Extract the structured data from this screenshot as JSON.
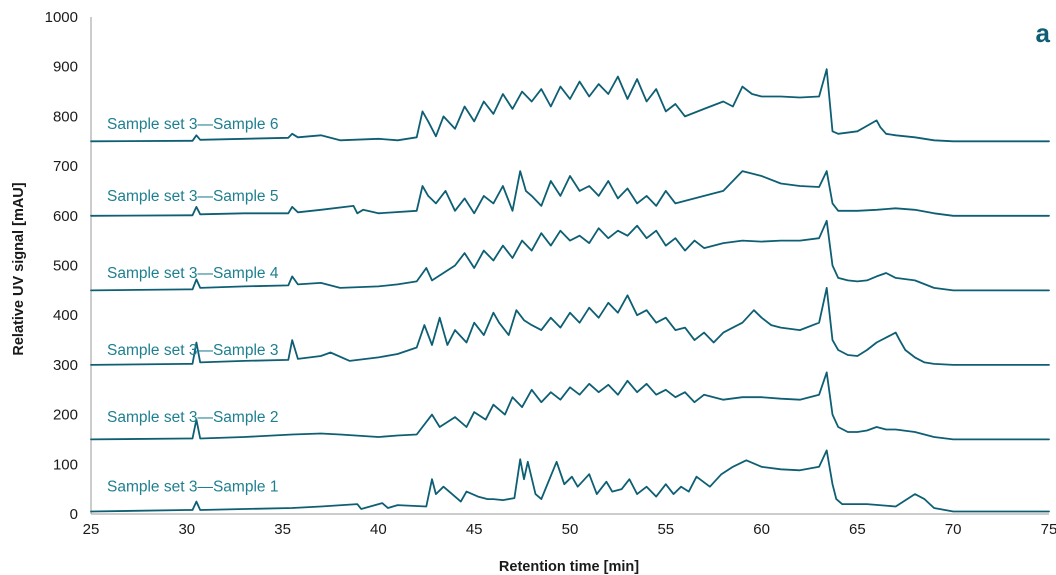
{
  "colors": {
    "trace": "#0e5f73",
    "label": "#1e7f90",
    "axis": "#9a9a9a",
    "panel_letter": "#0e5f73"
  },
  "chart_data": {
    "type": "line",
    "panel_letter": "a",
    "xlabel": "Retention time [min]",
    "ylabel": "Relative UV signal [mAU]",
    "xlim": [
      25,
      75
    ],
    "ylim": [
      0,
      1000
    ],
    "x_ticks": [
      25,
      30,
      35,
      40,
      45,
      50,
      55,
      60,
      65,
      70,
      75
    ],
    "y_ticks": [
      0,
      100,
      200,
      300,
      400,
      500,
      600,
      700,
      800,
      900,
      1000
    ],
    "grid": false,
    "series": [
      {
        "name": "Sample set 3—Sample 1",
        "label_y": 55,
        "x": [
          25,
          30,
          30.3,
          30.5,
          30.7,
          33,
          35.5,
          37,
          38.9,
          39.1,
          40.2,
          40.5,
          41,
          42.5,
          42.8,
          43,
          43.4,
          44.3,
          44.6,
          45.2,
          45.7,
          46,
          46.5,
          47.1,
          47.4,
          47.6,
          47.8,
          48.2,
          48.5,
          49.3,
          49.7,
          50.1,
          50.4,
          51,
          51.4,
          51.9,
          52.2,
          52.7,
          53.1,
          53.5,
          54,
          54.5,
          55,
          55.4,
          55.8,
          56.2,
          56.6,
          57.3,
          57.9,
          58.5,
          59.2,
          60,
          61,
          62,
          63,
          63.4,
          63.7,
          63.9,
          64.2,
          64.5,
          65,
          65.5,
          67,
          68,
          68.5,
          69,
          70,
          75
        ],
        "y": [
          5,
          8,
          8,
          25,
          8,
          10,
          12,
          15,
          20,
          10,
          22,
          12,
          18,
          15,
          70,
          40,
          55,
          25,
          45,
          35,
          30,
          30,
          28,
          32,
          110,
          70,
          105,
          40,
          30,
          105,
          60,
          75,
          55,
          80,
          40,
          65,
          45,
          50,
          70,
          40,
          55,
          35,
          60,
          40,
          55,
          45,
          75,
          55,
          80,
          95,
          108,
          95,
          90,
          88,
          95,
          128,
          60,
          30,
          20,
          20,
          20,
          20,
          15,
          40,
          30,
          12,
          5,
          5
        ]
      },
      {
        "name": "Sample set 3—Sample 2",
        "label_y": 195,
        "x": [
          25,
          30,
          30.3,
          30.5,
          30.7,
          33,
          35.5,
          37,
          38,
          40,
          41,
          42,
          42.8,
          43.2,
          44,
          44.6,
          45,
          45.6,
          46,
          46.6,
          47,
          47.5,
          48,
          48.5,
          49,
          49.5,
          50,
          50.5,
          51,
          51.5,
          52,
          52.5,
          53,
          53.5,
          54,
          54.5,
          55,
          55.5,
          56,
          56.5,
          57,
          58,
          59,
          60,
          61,
          62,
          63,
          63.4,
          63.7,
          64,
          64.5,
          65,
          65.5,
          66,
          66.5,
          67,
          68,
          69,
          70,
          75
        ],
        "y": [
          150,
          152,
          152,
          190,
          152,
          155,
          160,
          162,
          160,
          155,
          158,
          160,
          200,
          175,
          195,
          175,
          205,
          190,
          220,
          200,
          235,
          215,
          250,
          225,
          245,
          230,
          255,
          240,
          262,
          245,
          260,
          240,
          268,
          245,
          262,
          240,
          250,
          235,
          245,
          225,
          240,
          230,
          235,
          235,
          232,
          230,
          240,
          285,
          200,
          175,
          165,
          165,
          168,
          175,
          170,
          170,
          165,
          155,
          150,
          150
        ]
      },
      {
        "name": "Sample set 3—Sample 3",
        "label_y": 330,
        "x": [
          25,
          30,
          30.3,
          30.5,
          30.7,
          33,
          35.3,
          35.5,
          35.8,
          37,
          37.5,
          38.5,
          40,
          41,
          42,
          42.4,
          42.8,
          43.2,
          43.6,
          44,
          44.6,
          45,
          45.5,
          46,
          46.3,
          46.8,
          47.2,
          47.6,
          48,
          48.5,
          49,
          49.5,
          50,
          50.5,
          51,
          51.5,
          52,
          52.5,
          53,
          53.5,
          54,
          54.5,
          55,
          55.5,
          56,
          56.5,
          57,
          57.5,
          58,
          58.5,
          59,
          59.6,
          60,
          60.5,
          61,
          62,
          63,
          63.4,
          63.7,
          64,
          64.5,
          65,
          65.5,
          66,
          66.5,
          67,
          67.2,
          67.5,
          68,
          68.5,
          69,
          70,
          75
        ],
        "y": [
          300,
          302,
          302,
          345,
          305,
          308,
          310,
          350,
          312,
          318,
          325,
          308,
          315,
          322,
          335,
          380,
          340,
          395,
          340,
          370,
          345,
          385,
          360,
          405,
          385,
          360,
          410,
          390,
          380,
          370,
          395,
          375,
          405,
          385,
          415,
          395,
          425,
          405,
          440,
          400,
          410,
          385,
          395,
          370,
          375,
          350,
          365,
          345,
          365,
          375,
          385,
          410,
          395,
          380,
          375,
          370,
          385,
          455,
          350,
          330,
          320,
          318,
          330,
          345,
          355,
          365,
          350,
          330,
          315,
          305,
          302,
          300,
          300
        ]
      },
      {
        "name": "Sample set 3—Sample 4",
        "label_y": 485,
        "x": [
          25,
          30,
          30.3,
          30.5,
          30.7,
          33,
          35.3,
          35.5,
          35.8,
          37,
          38,
          40,
          41,
          42,
          42.5,
          42.8,
          43,
          44,
          44.5,
          45,
          45.5,
          46,
          46.5,
          47,
          47.5,
          48,
          48.5,
          49,
          49.5,
          50,
          50.5,
          51,
          51.5,
          52,
          52.5,
          53,
          53.5,
          54,
          54.5,
          55,
          55.5,
          56,
          56.5,
          57,
          58,
          59,
          60,
          61,
          62,
          63,
          63.4,
          63.7,
          64,
          64.5,
          65,
          65.5,
          66,
          66.5,
          67,
          68,
          69,
          70,
          75
        ],
        "y": [
          450,
          452,
          452,
          472,
          455,
          458,
          460,
          478,
          462,
          465,
          455,
          458,
          462,
          468,
          495,
          470,
          475,
          500,
          525,
          495,
          530,
          510,
          540,
          515,
          550,
          530,
          565,
          540,
          570,
          550,
          560,
          545,
          575,
          555,
          570,
          560,
          580,
          555,
          570,
          540,
          555,
          530,
          550,
          535,
          545,
          550,
          548,
          550,
          550,
          555,
          590,
          500,
          475,
          470,
          468,
          470,
          478,
          485,
          475,
          470,
          455,
          450,
          450
        ]
      },
      {
        "name": "Sample set 3—Sample 5",
        "label_y": 640,
        "x": [
          25,
          30,
          30.3,
          30.5,
          30.7,
          33,
          35.3,
          35.5,
          35.8,
          37,
          38.7,
          38.9,
          39.2,
          40,
          42,
          42.3,
          42.6,
          43,
          43.5,
          44,
          44.5,
          45,
          45.5,
          46,
          46.5,
          47,
          47.4,
          47.7,
          48,
          48.5,
          49,
          49.5,
          50,
          50.5,
          51,
          51.5,
          52,
          52.5,
          53,
          53.5,
          54,
          54.5,
          55,
          55.5,
          56,
          57,
          58,
          59,
          60,
          61,
          62,
          63,
          63.4,
          63.7,
          64,
          65,
          66,
          67,
          68,
          69,
          70,
          75
        ],
        "y": [
          600,
          601,
          601,
          618,
          603,
          605,
          605,
          618,
          607,
          612,
          620,
          605,
          612,
          605,
          610,
          660,
          640,
          625,
          650,
          610,
          635,
          605,
          640,
          625,
          660,
          610,
          690,
          650,
          640,
          620,
          670,
          640,
          680,
          650,
          660,
          640,
          670,
          635,
          655,
          625,
          640,
          620,
          650,
          625,
          630,
          640,
          650,
          690,
          680,
          665,
          660,
          658,
          690,
          625,
          610,
          610,
          612,
          615,
          612,
          605,
          600,
          600
        ]
      },
      {
        "name": "Sample set 3—Sample 6",
        "label_y": 785,
        "x": [
          25,
          30,
          30.3,
          30.5,
          30.7,
          33,
          35.3,
          35.5,
          35.8,
          37,
          38,
          40,
          41,
          42,
          42.3,
          42.6,
          43,
          43.4,
          44,
          44.5,
          45,
          45.5,
          46,
          46.5,
          47,
          47.5,
          48,
          48.5,
          49,
          49.5,
          50,
          50.5,
          51,
          51.5,
          52,
          52.5,
          53,
          53.5,
          54,
          54.5,
          55,
          55.5,
          56,
          57,
          58,
          58.5,
          59,
          59.5,
          60,
          61,
          62,
          63,
          63.4,
          63.7,
          64,
          65,
          66,
          66.2,
          66.5,
          67,
          68,
          69,
          70,
          75
        ],
        "y": [
          750,
          751,
          751,
          762,
          753,
          755,
          757,
          765,
          758,
          762,
          752,
          755,
          752,
          758,
          810,
          790,
          760,
          800,
          775,
          820,
          790,
          830,
          805,
          845,
          815,
          850,
          830,
          855,
          820,
          860,
          835,
          870,
          840,
          865,
          845,
          880,
          835,
          875,
          830,
          855,
          810,
          825,
          800,
          815,
          830,
          820,
          860,
          845,
          840,
          840,
          838,
          840,
          895,
          770,
          765,
          770,
          792,
          778,
          765,
          762,
          758,
          752,
          750,
          750
        ]
      }
    ]
  }
}
